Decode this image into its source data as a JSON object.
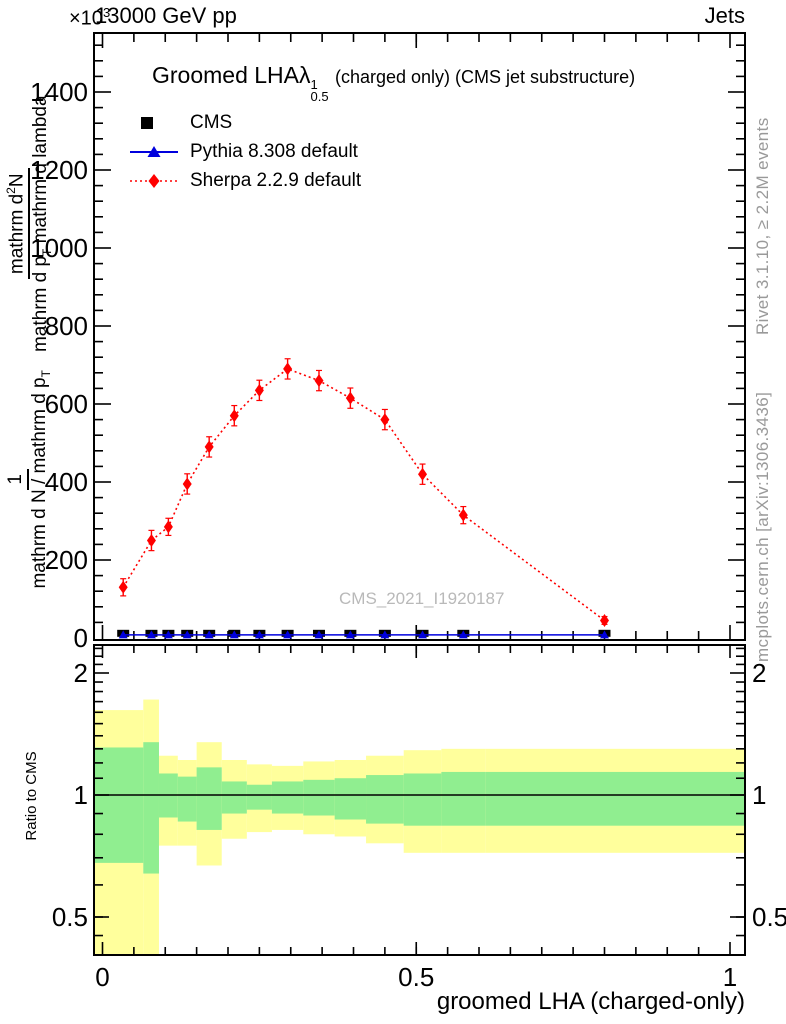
{
  "header": {
    "multiplier_base": "×10",
    "multiplier_exp": "3",
    "collision": "13000 GeV pp",
    "right": "Jets"
  },
  "plot_title": {
    "prefix": "Groomed LHA",
    "lambda": "λ",
    "sup": "1",
    "sub": "0.5",
    "suffix": "(charged only) (CMS jet substructure)"
  },
  "watermark": "CMS_2021_I1920187",
  "side_notes": {
    "top": "Rivet 3.1.10, ≥ 2.2M events",
    "bottom": "mcplots.cern.ch [arXiv:1306.3436]"
  },
  "ylabel": {
    "f1_num": "1",
    "f1_den_a": "mathrm d N / mathrm d p",
    "f1_den_sub": "T",
    "f2_num_a": "mathrm d",
    "f2_num_sup": "2",
    "f2_num_b": "N",
    "f2_den_a": "mathrm d p",
    "f2_den_sub": "T",
    "f2_den_b": " mathrm d lambda"
  },
  "axis_ticks": {
    "x_values": [
      0,
      0.5,
      1
    ],
    "x_labels": [
      "0",
      "0.5",
      "1"
    ],
    "y_values": [
      0,
      200,
      400,
      600,
      800,
      1000,
      1200,
      1400
    ],
    "y_labels": [
      "0",
      "200",
      "400",
      "600",
      "800",
      "1000",
      "1200",
      "1400"
    ],
    "ratio_values": [
      0.5,
      1,
      2
    ],
    "ratio_labels": [
      "0.5",
      "1",
      "2"
    ]
  },
  "chart_data": {
    "type": "line",
    "title": "Groomed LHA lambda^1_0.5 (charged only) (CMS jet substructure)",
    "xlabel": "groomed LHA (charged-only)",
    "ylabel": "1/(dN/dp_T) d^2N/(dp_T dlambda)",
    "y_units": "×10^3",
    "xlim": [
      0,
      1
    ],
    "ylim": [
      0,
      1550
    ],
    "x": [
      0.033,
      0.078,
      0.105,
      0.135,
      0.17,
      0.21,
      0.25,
      0.295,
      0.345,
      0.395,
      0.45,
      0.51,
      0.575,
      0.8
    ],
    "series": [
      {
        "name": "CMS",
        "color": "#000000",
        "marker": "square",
        "line": "none",
        "values": [
          12,
          12,
          12,
          12,
          12,
          12,
          12,
          12,
          12,
          12,
          12,
          12,
          12,
          12
        ]
      },
      {
        "name": "Pythia 8.308 default",
        "color": "#0000dd",
        "marker": "triangle",
        "line": "solid",
        "values": [
          8,
          8,
          8,
          8,
          8,
          8,
          8,
          8,
          8,
          8,
          8,
          8,
          8,
          8
        ]
      },
      {
        "name": "Sherpa 2.2.9 default",
        "color": "#ff0000",
        "marker": "diamond",
        "line": "dotted",
        "values": [
          130,
          250,
          285,
          395,
          490,
          570,
          635,
          690,
          660,
          615,
          560,
          420,
          315,
          45
        ],
        "yerr": [
          22,
          26,
          22,
          26,
          26,
          26,
          26,
          26,
          26,
          26,
          26,
          26,
          22,
          10
        ]
      }
    ],
    "ratio_panel": {
      "ylabel": "Ratio to CMS",
      "yticks": [
        0.5,
        1,
        2
      ],
      "reference_line": 1,
      "band_colors": {
        "outer": "#ffff9c",
        "inner": "#90ee90"
      },
      "bins": [
        {
          "x0": 0.0,
          "x1": 0.065,
          "outer": [
            0.3,
            1.62
          ],
          "inner": [
            0.68,
            1.31
          ]
        },
        {
          "x0": 0.065,
          "x1": 0.09,
          "outer": [
            0.3,
            1.72
          ],
          "inner": [
            0.64,
            1.35
          ]
        },
        {
          "x0": 0.09,
          "x1": 0.12,
          "outer": [
            0.75,
            1.25
          ],
          "inner": [
            0.88,
            1.13
          ]
        },
        {
          "x0": 0.12,
          "x1": 0.15,
          "outer": [
            0.75,
            1.22
          ],
          "inner": [
            0.86,
            1.11
          ]
        },
        {
          "x0": 0.15,
          "x1": 0.19,
          "outer": [
            0.67,
            1.35
          ],
          "inner": [
            0.82,
            1.17
          ]
        },
        {
          "x0": 0.19,
          "x1": 0.23,
          "outer": [
            0.78,
            1.22
          ],
          "inner": [
            0.9,
            1.08
          ]
        },
        {
          "x0": 0.23,
          "x1": 0.27,
          "outer": [
            0.81,
            1.19
          ],
          "inner": [
            0.92,
            1.06
          ]
        },
        {
          "x0": 0.27,
          "x1": 0.32,
          "outer": [
            0.82,
            1.18
          ],
          "inner": [
            0.9,
            1.08
          ]
        },
        {
          "x0": 0.32,
          "x1": 0.37,
          "outer": [
            0.8,
            1.21
          ],
          "inner": [
            0.89,
            1.09
          ]
        },
        {
          "x0": 0.37,
          "x1": 0.42,
          "outer": [
            0.79,
            1.22
          ],
          "inner": [
            0.87,
            1.1
          ]
        },
        {
          "x0": 0.42,
          "x1": 0.48,
          "outer": [
            0.76,
            1.25
          ],
          "inner": [
            0.85,
            1.12
          ]
        },
        {
          "x0": 0.48,
          "x1": 0.54,
          "outer": [
            0.72,
            1.29
          ],
          "inner": [
            0.84,
            1.13
          ]
        },
        {
          "x0": 0.54,
          "x1": 0.61,
          "outer": [
            0.72,
            1.3
          ],
          "inner": [
            0.84,
            1.14
          ]
        },
        {
          "x0": 0.61,
          "x1": 1.0,
          "outer": [
            0.72,
            1.3
          ],
          "inner": [
            0.84,
            1.14
          ]
        }
      ]
    }
  }
}
